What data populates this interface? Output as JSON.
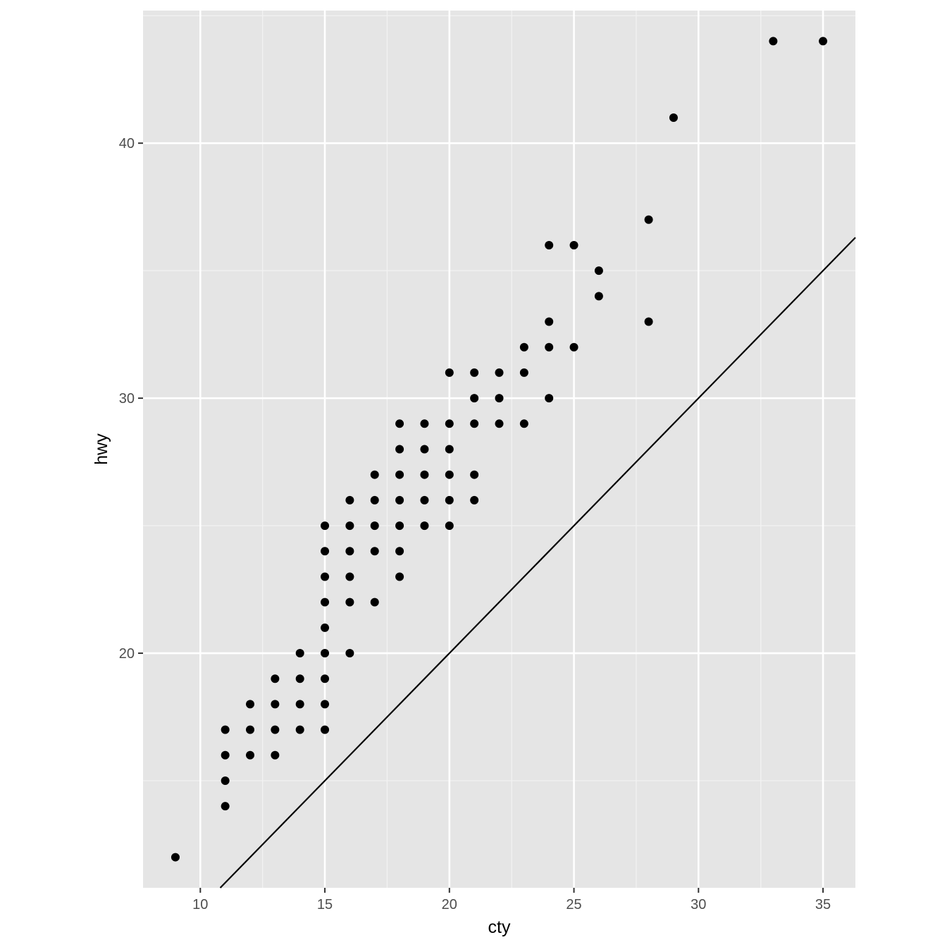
{
  "chart_data": {
    "type": "scatter",
    "title": "",
    "xlabel": "cty",
    "ylabel": "hwy",
    "xlim": [
      7.7,
      36.3
    ],
    "ylim": [
      10.8,
      45.2
    ],
    "x_ticks": [
      10,
      15,
      20,
      25,
      30,
      35
    ],
    "y_ticks": [
      20,
      30,
      40
    ],
    "x_tick_labels": [
      "10",
      "15",
      "20",
      "25",
      "30",
      "35"
    ],
    "y_tick_labels": [
      "20",
      "30",
      "40"
    ],
    "grid": true,
    "legend": "none",
    "colors": {
      "panel_background": "#e5e5e5",
      "grid_major": "#ffffff",
      "grid_minor": "#f2f2f2",
      "point": "#000000",
      "line": "#000000",
      "tick_label": "#4d4d4d",
      "axis_tick": "#333333"
    },
    "reference_line": {
      "intercept": 0,
      "slope": 1
    },
    "points": [
      [
        9,
        12
      ],
      [
        11,
        14
      ],
      [
        11,
        15
      ],
      [
        11,
        16
      ],
      [
        11,
        17
      ],
      [
        12,
        16
      ],
      [
        12,
        17
      ],
      [
        12,
        18
      ],
      [
        13,
        16
      ],
      [
        13,
        17
      ],
      [
        13,
        18
      ],
      [
        13,
        19
      ],
      [
        14,
        17
      ],
      [
        14,
        18
      ],
      [
        14,
        19
      ],
      [
        14,
        20
      ],
      [
        15,
        17
      ],
      [
        15,
        18
      ],
      [
        15,
        19
      ],
      [
        15,
        20
      ],
      [
        15,
        21
      ],
      [
        15,
        22
      ],
      [
        15,
        23
      ],
      [
        15,
        24
      ],
      [
        15,
        25
      ],
      [
        16,
        20
      ],
      [
        16,
        22
      ],
      [
        16,
        23
      ],
      [
        16,
        24
      ],
      [
        16,
        25
      ],
      [
        16,
        26
      ],
      [
        17,
        22
      ],
      [
        17,
        24
      ],
      [
        17,
        25
      ],
      [
        17,
        26
      ],
      [
        17,
        27
      ],
      [
        18,
        23
      ],
      [
        18,
        24
      ],
      [
        18,
        25
      ],
      [
        18,
        26
      ],
      [
        18,
        27
      ],
      [
        18,
        28
      ],
      [
        18,
        29
      ],
      [
        19,
        25
      ],
      [
        19,
        26
      ],
      [
        19,
        27
      ],
      [
        19,
        28
      ],
      [
        19,
        29
      ],
      [
        20,
        25
      ],
      [
        20,
        26
      ],
      [
        20,
        27
      ],
      [
        20,
        28
      ],
      [
        20,
        29
      ],
      [
        20,
        31
      ],
      [
        21,
        26
      ],
      [
        21,
        27
      ],
      [
        21,
        29
      ],
      [
        21,
        30
      ],
      [
        21,
        31
      ],
      [
        22,
        29
      ],
      [
        22,
        30
      ],
      [
        22,
        31
      ],
      [
        23,
        29
      ],
      [
        23,
        31
      ],
      [
        23,
        32
      ],
      [
        24,
        30
      ],
      [
        24,
        32
      ],
      [
        24,
        33
      ],
      [
        24,
        36
      ],
      [
        25,
        32
      ],
      [
        25,
        36
      ],
      [
        26,
        34
      ],
      [
        26,
        35
      ],
      [
        28,
        33
      ],
      [
        28,
        37
      ],
      [
        29,
        41
      ],
      [
        33,
        44
      ],
      [
        35,
        44
      ]
    ]
  }
}
